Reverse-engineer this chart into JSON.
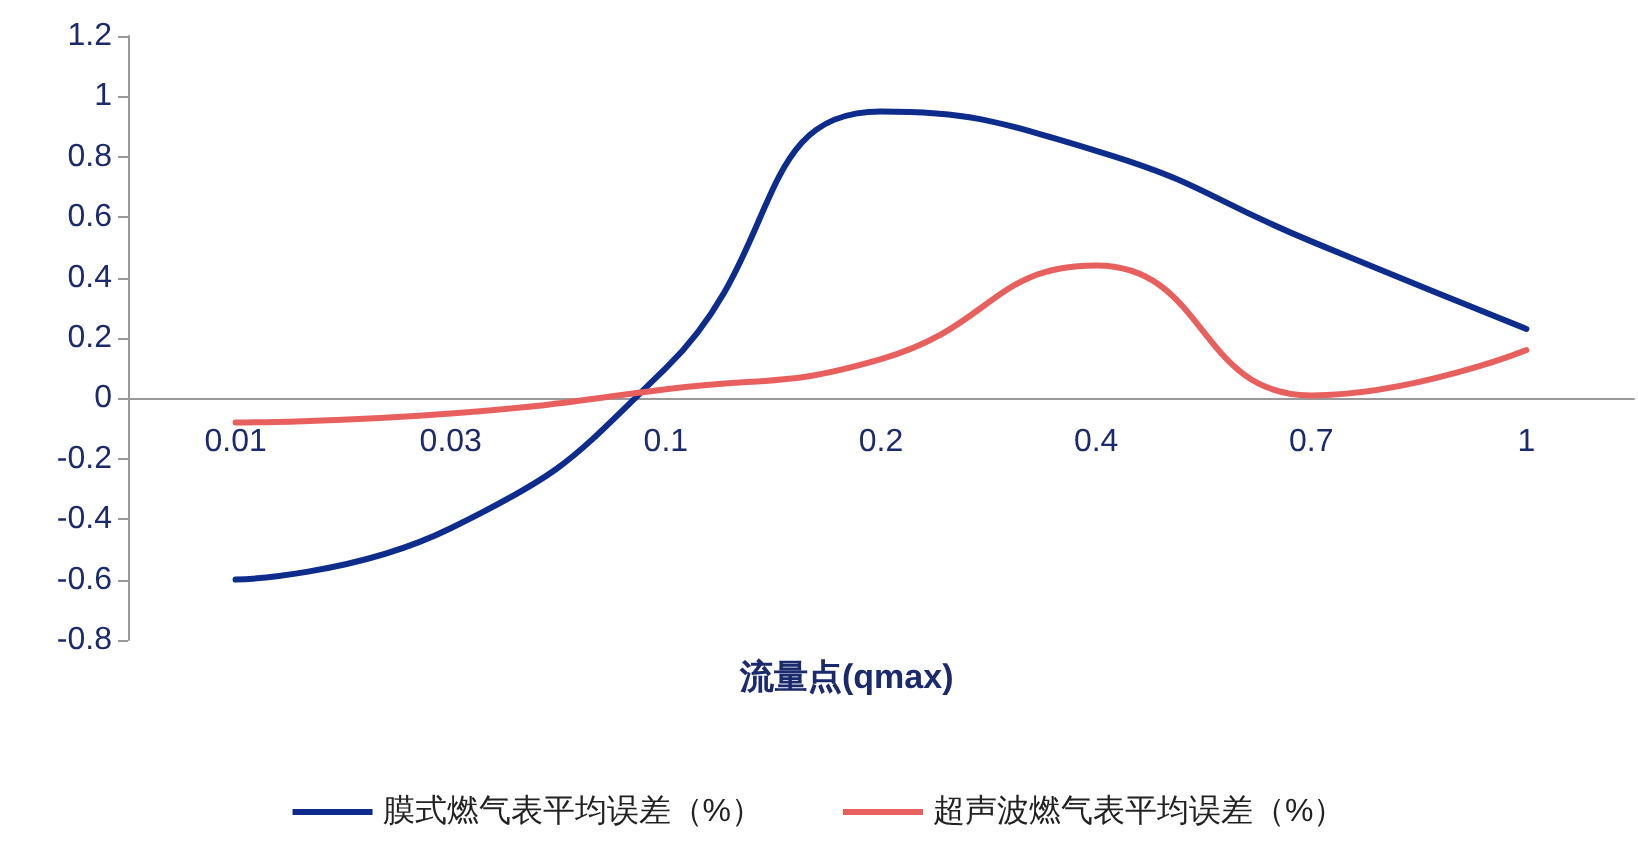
{
  "chart_data": {
    "type": "line",
    "xlabel": "流量点(qmax)",
    "categories": [
      "0.01",
      "0.03",
      "0.1",
      "0.2",
      "0.4",
      "0.7",
      "1"
    ],
    "series": [
      {
        "name": "膜式燃气表平均误差（%）",
        "color": "#0d2c8c",
        "values": [
          -0.6,
          -0.43,
          0.1,
          0.95,
          0.82,
          0.52,
          0.23
        ]
      },
      {
        "name": "超声波燃气表平均误差（%）",
        "color": "#e8605e",
        "values": [
          -0.08,
          -0.05,
          0.03,
          0.13,
          0.44,
          0.01,
          0.16
        ]
      }
    ],
    "ylim": [
      -0.8,
      1.2
    ],
    "yticks": [
      -0.8,
      -0.6,
      -0.4,
      -0.2,
      0,
      0.2,
      0.4,
      0.6,
      0.8,
      1,
      1.2
    ],
    "grid": false,
    "legend": "bottom",
    "marker": "none",
    "line_style": "solid"
  }
}
